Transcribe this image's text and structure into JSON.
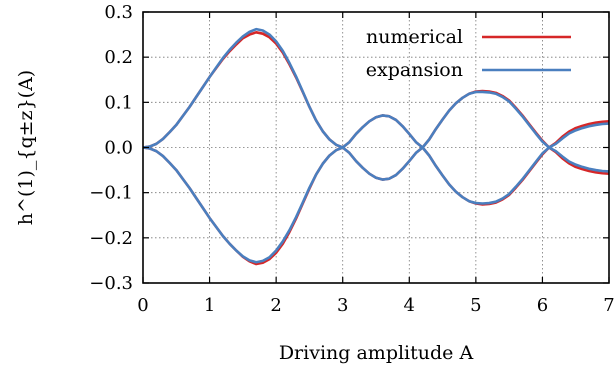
{
  "chart_data": {
    "type": "line",
    "title": "",
    "xlabel": "Driving amplitude A",
    "ylabel": "h^(1)_{q±z}(A)",
    "xlim": [
      0,
      7
    ],
    "ylim": [
      -0.3,
      0.3
    ],
    "x_ticks": [
      0,
      1,
      2,
      3,
      4,
      5,
      6,
      7
    ],
    "x_tick_labels": [
      "0",
      "1",
      "2",
      "3",
      "4",
      "5",
      "6",
      "7"
    ],
    "y_ticks": [
      0.3,
      0.2,
      0.1,
      0.0,
      -0.1,
      -0.2,
      -0.3
    ],
    "y_tick_labels": [
      "0.3",
      "0.2",
      "0.1",
      "0.0",
      "−0.1",
      "−0.2",
      "−0.3"
    ],
    "grid": true,
    "legend_position": "top-right",
    "series": [
      {
        "name": "numerical",
        "color": "#d62728",
        "branches": [
          {
            "x": [
              0,
              0.1,
              0.2,
              0.3,
              0.4,
              0.5,
              0.6,
              0.7,
              0.8,
              0.9,
              1.0,
              1.1,
              1.2,
              1.3,
              1.4,
              1.5,
              1.6,
              1.7,
              1.8,
              1.9,
              2.0,
              2.1,
              2.2,
              2.3,
              2.4,
              2.5,
              2.6,
              2.7,
              2.8,
              2.9,
              3.0,
              3.1,
              3.2,
              3.3,
              3.4,
              3.5,
              3.6,
              3.7,
              3.8,
              3.9,
              4.0,
              4.1,
              4.2,
              4.3,
              4.4,
              4.5,
              4.6,
              4.7,
              4.8,
              4.9,
              5.0,
              5.1,
              5.2,
              5.3,
              5.4,
              5.5,
              5.6,
              5.7,
              5.8,
              5.9,
              6.0,
              6.1,
              6.2,
              6.3,
              6.4,
              6.5,
              6.6,
              6.7,
              6.8,
              6.9,
              7.0
            ],
            "y": [
              0,
              0.002,
              0.008,
              0.019,
              0.034,
              0.05,
              0.07,
              0.09,
              0.112,
              0.134,
              0.156,
              0.176,
              0.196,
              0.213,
              0.228,
              0.242,
              0.25,
              0.255,
              0.252,
              0.244,
              0.23,
              0.21,
              0.184,
              0.155,
              0.123,
              0.09,
              0.06,
              0.036,
              0.018,
              0.006,
              0,
              0.012,
              0.03,
              0.045,
              0.058,
              0.067,
              0.071,
              0.069,
              0.061,
              0.047,
              0.03,
              0.012,
              0,
              0.018,
              0.041,
              0.062,
              0.082,
              0.098,
              0.11,
              0.119,
              0.124,
              0.125,
              0.124,
              0.121,
              0.114,
              0.104,
              0.088,
              0.071,
              0.052,
              0.033,
              0.015,
              0,
              0.01,
              0.024,
              0.035,
              0.043,
              0.048,
              0.052,
              0.055,
              0.057,
              0.058
            ]
          },
          {
            "x": [
              0,
              0.1,
              0.2,
              0.3,
              0.4,
              0.5,
              0.6,
              0.7,
              0.8,
              0.9,
              1.0,
              1.1,
              1.2,
              1.3,
              1.4,
              1.5,
              1.6,
              1.7,
              1.8,
              1.9,
              2.0,
              2.1,
              2.2,
              2.3,
              2.4,
              2.5,
              2.6,
              2.7,
              2.8,
              2.9,
              3.0,
              3.1,
              3.2,
              3.3,
              3.4,
              3.5,
              3.6,
              3.7,
              3.8,
              3.9,
              4.0,
              4.1,
              4.2,
              4.3,
              4.4,
              4.5,
              4.6,
              4.7,
              4.8,
              4.9,
              5.0,
              5.1,
              5.2,
              5.3,
              5.4,
              5.5,
              5.6,
              5.7,
              5.8,
              5.9,
              6.0,
              6.1,
              6.2,
              6.3,
              6.4,
              6.5,
              6.6,
              6.7,
              6.8,
              6.9,
              7.0
            ],
            "y": [
              0,
              -0.002,
              -0.008,
              -0.019,
              -0.034,
              -0.05,
              -0.07,
              -0.09,
              -0.112,
              -0.134,
              -0.156,
              -0.176,
              -0.196,
              -0.213,
              -0.228,
              -0.242,
              -0.252,
              -0.258,
              -0.255,
              -0.247,
              -0.233,
              -0.213,
              -0.187,
              -0.157,
              -0.124,
              -0.091,
              -0.06,
              -0.036,
              -0.018,
              -0.006,
              0,
              -0.012,
              -0.03,
              -0.045,
              -0.058,
              -0.067,
              -0.071,
              -0.069,
              -0.061,
              -0.047,
              -0.03,
              -0.012,
              0,
              -0.018,
              -0.041,
              -0.062,
              -0.082,
              -0.098,
              -0.11,
              -0.119,
              -0.124,
              -0.126,
              -0.125,
              -0.122,
              -0.115,
              -0.105,
              -0.089,
              -0.072,
              -0.053,
              -0.034,
              -0.015,
              0,
              -0.01,
              -0.024,
              -0.035,
              -0.043,
              -0.048,
              -0.052,
              -0.055,
              -0.057,
              -0.058
            ]
          }
        ]
      },
      {
        "name": "expansion",
        "color": "#4a7fbf",
        "branches": [
          {
            "x": [
              0,
              0.1,
              0.2,
              0.3,
              0.4,
              0.5,
              0.6,
              0.7,
              0.8,
              0.9,
              1.0,
              1.1,
              1.2,
              1.3,
              1.4,
              1.5,
              1.6,
              1.7,
              1.8,
              1.9,
              2.0,
              2.1,
              2.2,
              2.3,
              2.4,
              2.5,
              2.6,
              2.7,
              2.8,
              2.9,
              3.0,
              3.1,
              3.2,
              3.3,
              3.4,
              3.5,
              3.6,
              3.7,
              3.8,
              3.9,
              4.0,
              4.1,
              4.2,
              4.3,
              4.4,
              4.5,
              4.6,
              4.7,
              4.8,
              4.9,
              5.0,
              5.1,
              5.2,
              5.3,
              5.4,
              5.5,
              5.6,
              5.7,
              5.8,
              5.9,
              6.0,
              6.1,
              6.2,
              6.3,
              6.4,
              6.5,
              6.6,
              6.7,
              6.8,
              6.9,
              7.0
            ],
            "y": [
              0,
              0.002,
              0.008,
              0.019,
              0.034,
              0.05,
              0.07,
              0.09,
              0.112,
              0.134,
              0.156,
              0.177,
              0.198,
              0.216,
              0.232,
              0.246,
              0.256,
              0.262,
              0.259,
              0.25,
              0.235,
              0.214,
              0.187,
              0.157,
              0.124,
              0.09,
              0.06,
              0.036,
              0.018,
              0.006,
              0,
              0.012,
              0.03,
              0.045,
              0.058,
              0.067,
              0.071,
              0.069,
              0.061,
              0.047,
              0.03,
              0.012,
              0,
              0.018,
              0.041,
              0.062,
              0.082,
              0.098,
              0.11,
              0.119,
              0.123,
              0.123,
              0.122,
              0.119,
              0.112,
              0.102,
              0.086,
              0.069,
              0.05,
              0.031,
              0.013,
              0,
              0.008,
              0.02,
              0.031,
              0.038,
              0.043,
              0.047,
              0.05,
              0.052,
              0.053
            ]
          },
          {
            "x": [
              0,
              0.1,
              0.2,
              0.3,
              0.4,
              0.5,
              0.6,
              0.7,
              0.8,
              0.9,
              1.0,
              1.1,
              1.2,
              1.3,
              1.4,
              1.5,
              1.6,
              1.7,
              1.8,
              1.9,
              2.0,
              2.1,
              2.2,
              2.3,
              2.4,
              2.5,
              2.6,
              2.7,
              2.8,
              2.9,
              3.0,
              3.1,
              3.2,
              3.3,
              3.4,
              3.5,
              3.6,
              3.7,
              3.8,
              3.9,
              4.0,
              4.1,
              4.2,
              4.3,
              4.4,
              4.5,
              4.6,
              4.7,
              4.8,
              4.9,
              5.0,
              5.1,
              5.2,
              5.3,
              5.4,
              5.5,
              5.6,
              5.7,
              5.8,
              5.9,
              6.0,
              6.1,
              6.2,
              6.3,
              6.4,
              6.5,
              6.6,
              6.7,
              6.8,
              6.9,
              7.0
            ],
            "y": [
              0,
              -0.002,
              -0.008,
              -0.019,
              -0.034,
              -0.05,
              -0.07,
              -0.09,
              -0.112,
              -0.134,
              -0.156,
              -0.176,
              -0.196,
              -0.213,
              -0.228,
              -0.241,
              -0.25,
              -0.254,
              -0.251,
              -0.243,
              -0.228,
              -0.208,
              -0.183,
              -0.154,
              -0.122,
              -0.089,
              -0.06,
              -0.036,
              -0.018,
              -0.006,
              0,
              -0.012,
              -0.03,
              -0.045,
              -0.058,
              -0.067,
              -0.071,
              -0.069,
              -0.061,
              -0.047,
              -0.03,
              -0.012,
              0,
              -0.018,
              -0.041,
              -0.062,
              -0.082,
              -0.098,
              -0.11,
              -0.119,
              -0.123,
              -0.124,
              -0.123,
              -0.12,
              -0.113,
              -0.103,
              -0.087,
              -0.07,
              -0.051,
              -0.032,
              -0.013,
              0,
              -0.008,
              -0.02,
              -0.031,
              -0.038,
              -0.043,
              -0.047,
              -0.05,
              -0.052,
              -0.053
            ]
          }
        ]
      }
    ]
  }
}
